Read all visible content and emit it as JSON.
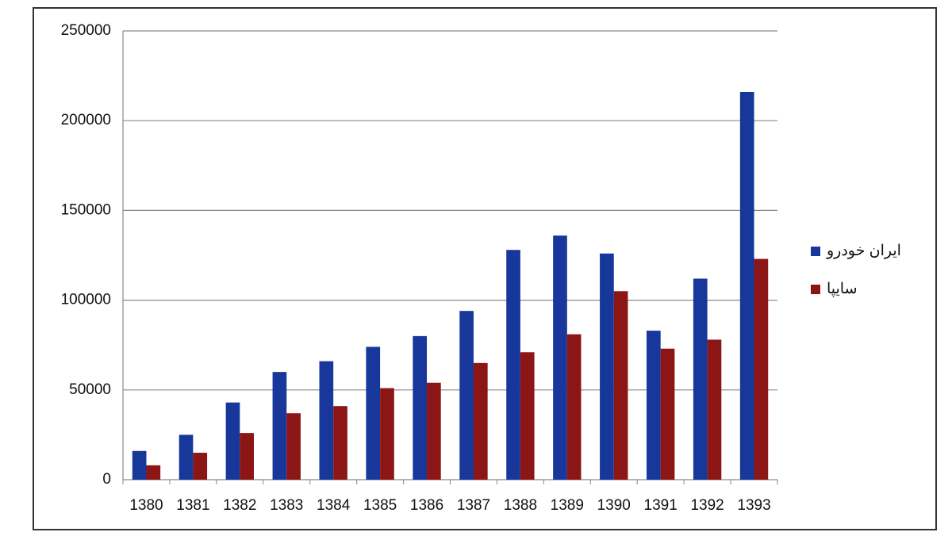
{
  "chart_data": {
    "type": "bar",
    "categories": [
      "1380",
      "1381",
      "1382",
      "1383",
      "1384",
      "1385",
      "1386",
      "1387",
      "1388",
      "1389",
      "1390",
      "1391",
      "1392",
      "1393"
    ],
    "series": [
      {
        "name": "ایران خودرو",
        "color": "#17379a",
        "values": [
          16000,
          25000,
          43000,
          60000,
          66000,
          74000,
          80000,
          94000,
          128000,
          136000,
          126000,
          83000,
          112000,
          216000
        ]
      },
      {
        "name": "سایپا",
        "color": "#8c1515",
        "values": [
          8000,
          15000,
          26000,
          37000,
          41000,
          51000,
          54000,
          65000,
          71000,
          81000,
          105000,
          73000,
          78000,
          123000
        ]
      }
    ],
    "ylim": [
      0,
      250000
    ],
    "yticks": [
      0,
      50000,
      100000,
      150000,
      200000,
      250000
    ],
    "grid": true,
    "legend": "right"
  }
}
